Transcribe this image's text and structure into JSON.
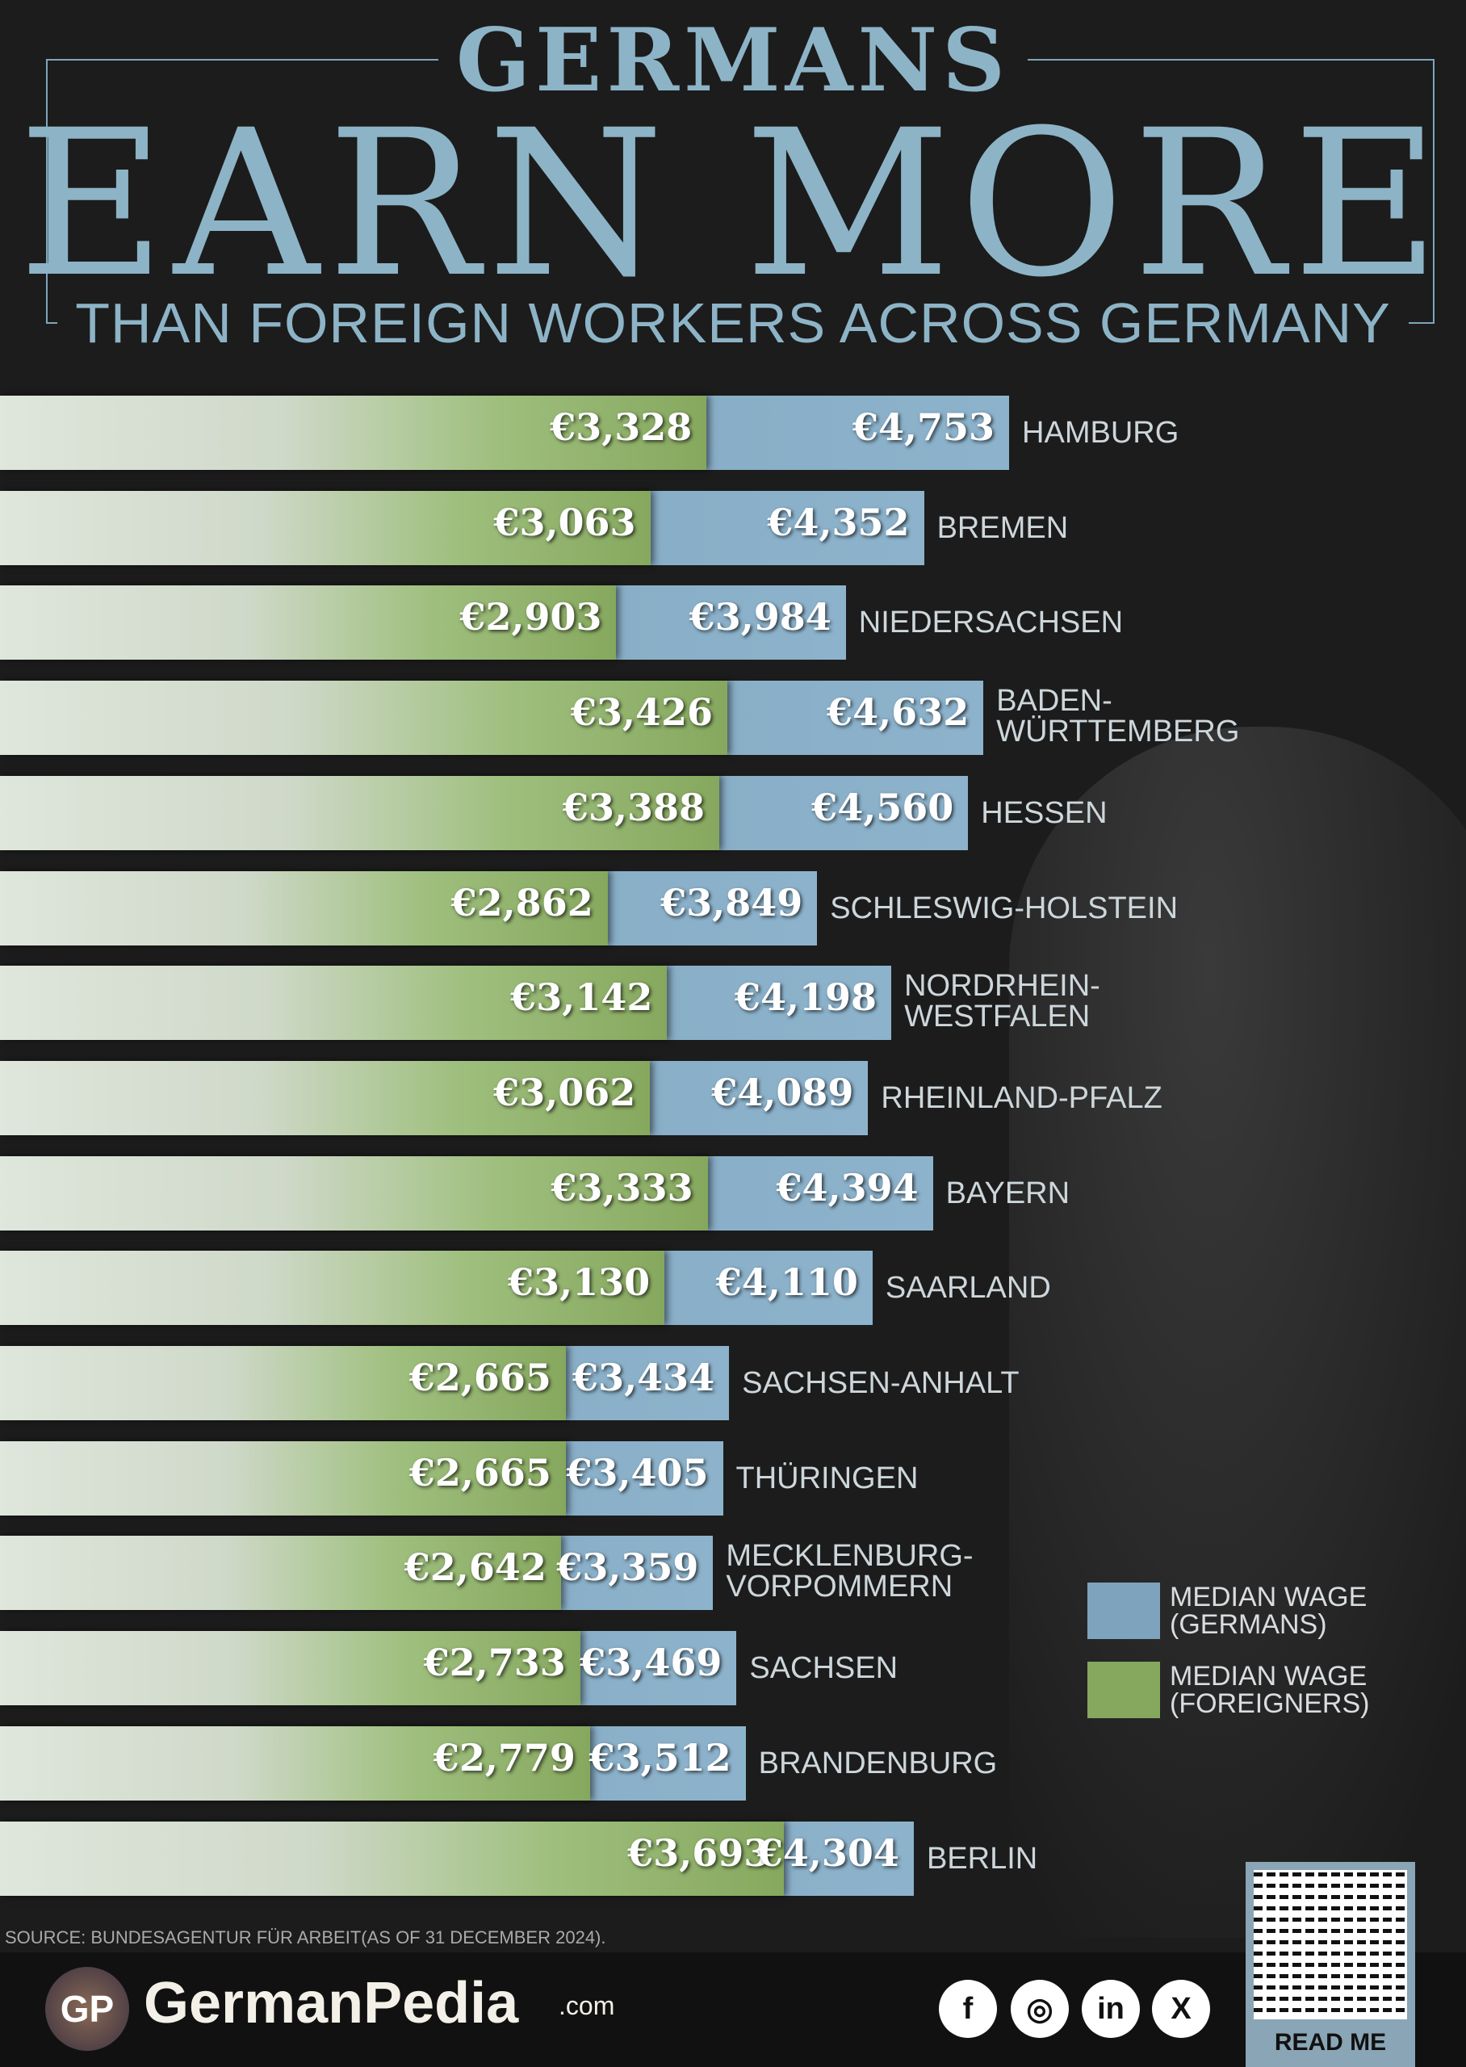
{
  "header": {
    "line1": "GERMANS",
    "line2": "EARN MORE",
    "line3": "THAN FOREIGN WORKERS ACROSS GERMANY"
  },
  "chart_data": {
    "type": "bar",
    "title": "GERMANS EARN MORE THAN FOREIGN WORKERS ACROSS GERMANY",
    "orientation": "horizontal",
    "categories": [
      "HAMBURG",
      "BREMEN",
      "NIEDERSACHSEN",
      "BADEN-\nWÜRTTEMBERG",
      "HESSEN",
      "SCHLESWIG-HOLSTEIN",
      "NORDRHEIN-\nWESTFALEN",
      "RHEINLAND-PFALZ",
      "BAYERN",
      "SAARLAND",
      "SACHSEN-ANHALT",
      "THÜRINGEN",
      "MECKLENBURG-\nVORPOMMERN",
      "SACHSEN",
      "BRANDENBURG",
      "BERLIN"
    ],
    "series": [
      {
        "name": "MEDIAN WAGE\n(FOREIGNERS)",
        "color": "#86a85e",
        "values": [
          3328,
          3063,
          2903,
          3426,
          3388,
          2862,
          3142,
          3062,
          3333,
          3130,
          2665,
          2665,
          2642,
          2733,
          2779,
          3693
        ],
        "labels": [
          "€3,328",
          "€3,063",
          "€2,903",
          "€3,426",
          "€3,388",
          "€2,862",
          "€3,142",
          "€3,062",
          "€3,333",
          "€3,130",
          "€2,665",
          "€2,665",
          "€2,642",
          "€2,733",
          "€2,779",
          "€3,693"
        ]
      },
      {
        "name": "MEDIAN WAGE\n(GERMANS)",
        "color": "#7ea4bd",
        "values": [
          4753,
          4352,
          3984,
          4632,
          4560,
          3849,
          4198,
          4089,
          4394,
          4110,
          3434,
          3405,
          3359,
          3469,
          3512,
          4304
        ],
        "labels": [
          "€4,753",
          "€4,352",
          "€3,984",
          "€4,632",
          "€4,560",
          "€3,849",
          "€4,198",
          "€4,089",
          "€4,394",
          "€4,110",
          "€3,434",
          "€3,405",
          "€3,359",
          "€3,469",
          "€3,512",
          "€4,304"
        ]
      }
    ],
    "legend_position": "bottom-right"
  },
  "source": "SOURCE: BUNDESAGENTUR FÜR ARBEIT(AS OF 31 DECEMBER 2024).",
  "footer": {
    "logo_text": "GP",
    "brand": "GermanPedia",
    "domain": ".com",
    "social": [
      "facebook",
      "instagram",
      "linkedin",
      "x"
    ],
    "social_glyphs": [
      "f",
      "◎",
      "in",
      "X"
    ],
    "qr_label": "READ ME"
  }
}
